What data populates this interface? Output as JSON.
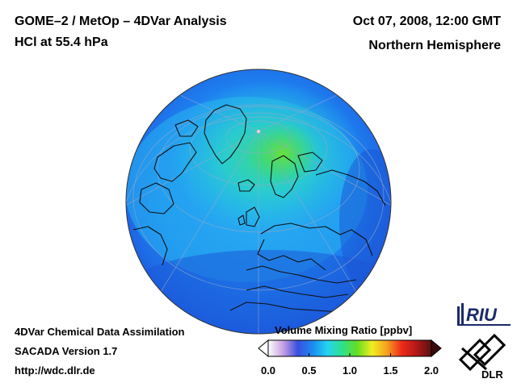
{
  "header": {
    "title": "GOME–2 / MetOp – 4DVar Analysis",
    "subtitle": "HCl at 55.4 hPa",
    "date": "Oct 07, 2008, 12:00 GMT",
    "region": "Northern Hemisphere"
  },
  "footer": {
    "line1": "4DVar Chemical Data Assimilation",
    "line2": "SACADA Version 1.7",
    "line3": "http://wdc.dlr.de"
  },
  "colorbar": {
    "title": "Volume Mixing Ratio [ppbv]",
    "min": 0.0,
    "max": 2.0,
    "ticks": [
      "0.0",
      "0.5",
      "1.0",
      "1.5",
      "2.0"
    ],
    "colors": [
      "#ffffff",
      "#c7a0e0",
      "#3a4ee0",
      "#1b8cf0",
      "#25d4f0",
      "#2ee08a",
      "#66dd22",
      "#f0ee22",
      "#f5a020",
      "#ee2a1a",
      "#b21818",
      "#5a1010"
    ]
  },
  "logos": {
    "riu": "RIU",
    "dlr": "DLR"
  },
  "map": {
    "projection": "orthographic",
    "center": "North Pole",
    "colors": {
      "background_field": "#1e82f0",
      "edge_field": "#1e5ee0",
      "polar_vortex": "#22d2d8",
      "maximum": "#38d86a",
      "coastlines": "#111111",
      "graticule": "#9aa8c8"
    }
  }
}
